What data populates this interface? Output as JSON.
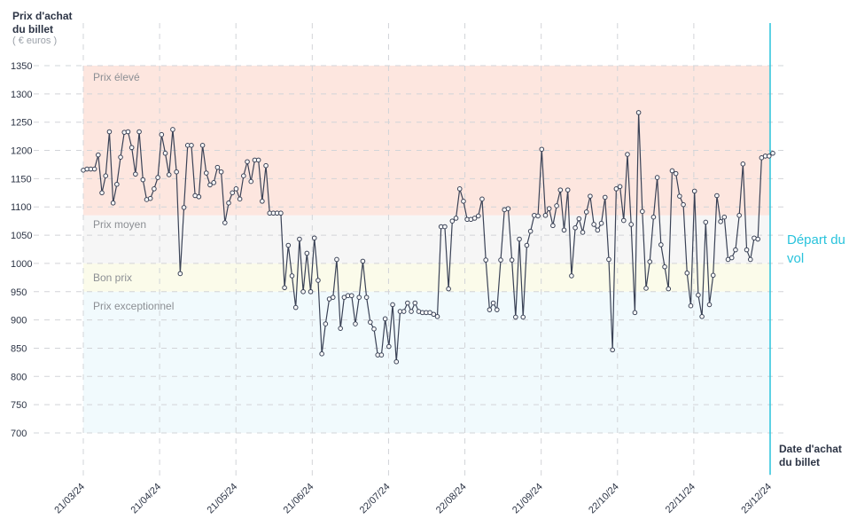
{
  "chart_data": {
    "type": "line",
    "y_title": "Prix d'achat du billet",
    "y_unit": "( € euros )",
    "x_title": "Date d'achat du billet",
    "departure_label": "Départ du vol",
    "ylim": [
      700,
      1350
    ],
    "y_ticks": [
      700,
      750,
      800,
      850,
      900,
      950,
      1000,
      1050,
      1100,
      1150,
      1200,
      1250,
      1300,
      1350
    ],
    "x_tick_labels": [
      "21/03/24",
      "21/04/24",
      "21/05/24",
      "21/06/24",
      "22/07/24",
      "22/08/24",
      "21/09/24",
      "22/10/24",
      "22/11/24",
      "23/12/24"
    ],
    "grid": true,
    "zones": [
      {
        "label": "Prix élevé",
        "from": 1085,
        "to": 1350,
        "color": "#fde6df"
      },
      {
        "label": "Prix moyen",
        "from": 1000,
        "to": 1085,
        "color": "#f6f6f6"
      },
      {
        "label": "Bon prix",
        "from": 950,
        "to": 1000,
        "color": "#fbfbea"
      },
      {
        "label": "Prix exceptionnel",
        "from": 700,
        "to": 950,
        "color": "#f1fafd"
      }
    ],
    "colors": {
      "line": "#3a4256",
      "departure": "#29c3dc",
      "grid": "#d2d4d8"
    },
    "series": [
      {
        "values": [
          1165,
          1167,
          1167,
          1167,
          1192,
          1125,
          1155,
          1233,
          1107,
          1140,
          1188,
          1232,
          1233,
          1205,
          1158,
          1233,
          1148,
          1113,
          1115,
          1132,
          1152,
          1228,
          1195,
          1157,
          1237,
          1162,
          982,
          1099,
          1209,
          1209,
          1120,
          1118,
          1209,
          1160,
          1139,
          1143,
          1170,
          1162,
          1072,
          1107,
          1125,
          1132,
          1114,
          1155,
          1180,
          1145,
          1183,
          1183,
          1110,
          1173,
          1089,
          1089,
          1089,
          1089,
          957,
          1032,
          978,
          922,
          1043,
          950,
          1018,
          950,
          1045,
          970,
          840,
          893,
          937,
          940,
          1007,
          885,
          940,
          943,
          943,
          893,
          940,
          1004,
          940,
          896,
          884,
          838,
          838,
          902,
          853,
          927,
          826,
          915,
          915,
          930,
          915,
          930,
          915,
          913,
          913,
          913,
          910,
          906,
          1065,
          1065,
          955,
          1075,
          1080,
          1132,
          1110,
          1078,
          1078,
          1080,
          1084,
          1114,
          1006,
          918,
          930,
          918,
          1006,
          1095,
          1097,
          1006,
          905,
          1043,
          905,
          1032,
          1057,
          1085,
          1084,
          1202,
          1085,
          1097,
          1067,
          1102,
          1130,
          1059,
          1130,
          978,
          1063,
          1079,
          1055,
          1091,
          1119,
          1069,
          1059,
          1071,
          1117,
          1007,
          847,
          1132,
          1136,
          1076,
          1193,
          1069,
          913,
          1267,
          1092,
          956,
          1003,
          1082,
          1152,
          1033,
          994,
          955,
          1164,
          1159,
          1119,
          1104,
          983,
          925,
          1128,
          944,
          906,
          1073,
          927,
          979,
          1120,
          1074,
          1082,
          1007,
          1010,
          1024,
          1085,
          1176,
          1024,
          1007,
          1045,
          1043,
          1187,
          1190,
          1190,
          1195
        ]
      }
    ]
  }
}
